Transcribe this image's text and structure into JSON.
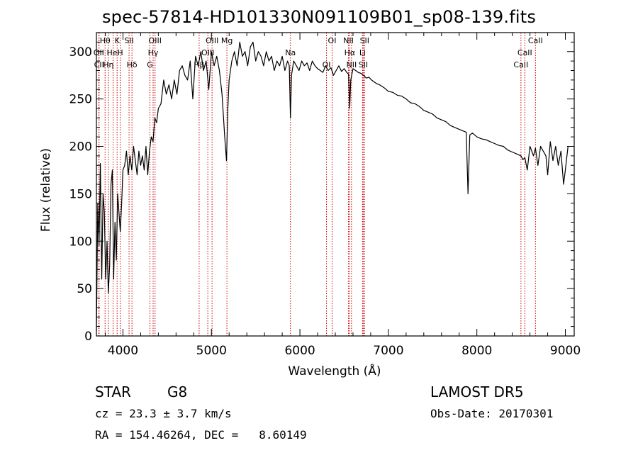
{
  "header": {
    "title": "spec-57814-HD101330N091109B01_sp08-139.fits"
  },
  "footer": {
    "class": "STAR",
    "subclass": "G8",
    "survey": "LAMOST DR5",
    "cz": "cz = 23.3 ± 3.7 km/s",
    "obs_date": "Obs-Date: 20170301",
    "coords": "RA = 154.46264, DEC =   8.60149"
  },
  "colors": {
    "line": "#000000",
    "marker": "#cc0000",
    "background": "#ffffff"
  },
  "chart_data": {
    "type": "line",
    "title": "spec-57814-HD101330N091109B01_sp08-139.fits",
    "xlabel": "Wavelength (Å)",
    "ylabel": "Flux (relative)",
    "xlim": [
      3700,
      9100
    ],
    "ylim": [
      0,
      320
    ],
    "xticks": [
      4000,
      5000,
      6000,
      7000,
      8000,
      9000
    ],
    "yticks": [
      0,
      50,
      100,
      150,
      200,
      250,
      300
    ],
    "grid": false,
    "series": [
      {
        "x": [
          3700,
          3715,
          3730,
          3745,
          3760,
          3775,
          3790,
          3805,
          3820,
          3835,
          3850,
          3865,
          3880,
          3895,
          3910,
          3925,
          3940,
          3955,
          3970,
          3985,
          4000,
          4020,
          4040,
          4060,
          4080,
          4100,
          4120,
          4140,
          4160,
          4180,
          4200,
          4220,
          4240,
          4260,
          4280,
          4300,
          4320,
          4340,
          4360,
          4380,
          4400,
          4430,
          4460,
          4490,
          4520,
          4550,
          4580,
          4610,
          4640,
          4670,
          4700,
          4730,
          4760,
          4790,
          4820,
          4850,
          4880,
          4910,
          4940,
          4970,
          5000,
          5030,
          5060,
          5090,
          5120,
          5150,
          5170,
          5185,
          5200,
          5230,
          5260,
          5290,
          5320,
          5350,
          5380,
          5410,
          5440,
          5470,
          5500,
          5530,
          5560,
          5590,
          5620,
          5650,
          5680,
          5710,
          5740,
          5770,
          5800,
          5830,
          5860,
          5880,
          5893,
          5905,
          5930,
          5960,
          5990,
          6020,
          6050,
          6080,
          6110,
          6140,
          6170,
          6200,
          6230,
          6260,
          6290,
          6320,
          6350,
          6380,
          6410,
          6440,
          6470,
          6500,
          6530,
          6550,
          6563,
          6575,
          6600,
          6630,
          6660,
          6690,
          6720,
          6750,
          6780,
          6810,
          6840,
          6870,
          6900,
          6950,
          7000,
          7050,
          7100,
          7150,
          7200,
          7250,
          7300,
          7350,
          7400,
          7450,
          7500,
          7550,
          7600,
          7650,
          7700,
          7750,
          7800,
          7850,
          7880,
          7900,
          7920,
          7950,
          8000,
          8050,
          8100,
          8150,
          8200,
          8250,
          8300,
          8350,
          8400,
          8450,
          8498,
          8520,
          8542,
          8570,
          8600,
          8640,
          8662,
          8690,
          8720,
          8750,
          8780,
          8800,
          8830,
          8860,
          8890,
          8920,
          8950,
          8980,
          9000,
          9030
        ],
        "y": [
          5,
          140,
          95,
          182,
          60,
          150,
          130,
          60,
          100,
          45,
          75,
          160,
          175,
          60,
          120,
          80,
          150,
          130,
          110,
          140,
          175,
          180,
          195,
          170,
          190,
          175,
          200,
          185,
          170,
          195,
          180,
          190,
          175,
          200,
          170,
          195,
          210,
          205,
          230,
          225,
          240,
          245,
          270,
          255,
          265,
          250,
          270,
          255,
          280,
          285,
          275,
          270,
          290,
          250,
          295,
          285,
          300,
          280,
          290,
          260,
          300,
          285,
          295,
          280,
          255,
          210,
          185,
          240,
          270,
          290,
          300,
          285,
          310,
          295,
          300,
          285,
          305,
          310,
          290,
          300,
          295,
          285,
          300,
          290,
          295,
          280,
          290,
          285,
          295,
          280,
          290,
          285,
          230,
          275,
          290,
          285,
          280,
          290,
          285,
          288,
          280,
          290,
          285,
          282,
          280,
          278,
          285,
          280,
          283,
          275,
          280,
          285,
          279,
          282,
          278,
          276,
          240,
          270,
          282,
          280,
          278,
          277,
          275,
          272,
          273,
          270,
          268,
          266,
          265,
          262,
          258,
          257,
          254,
          253,
          250,
          246,
          245,
          242,
          238,
          236,
          234,
          230,
          228,
          226,
          222,
          220,
          218,
          216,
          215,
          150,
          212,
          214,
          210,
          208,
          207,
          205,
          203,
          201,
          200,
          196,
          194,
          192,
          190,
          186,
          188,
          175,
          200,
          190,
          198,
          180,
          200,
          195,
          190,
          170,
          205,
          185,
          200,
          180,
          195,
          160,
          175,
          200
        ]
      }
    ],
    "line_markers": [
      {
        "label": "Hθ",
        "x": 3798
      },
      {
        "label": "OII",
        "x": 3727
      },
      {
        "label": "CII",
        "x": 3730
      },
      {
        "label": "K",
        "x": 3934
      },
      {
        "label": "HeI",
        "x": 3889
      },
      {
        "label": "Hη",
        "x": 3835
      },
      {
        "label": "SII",
        "x": 4069
      },
      {
        "label": "H",
        "x": 3969
      },
      {
        "label": "Hδ",
        "x": 4102
      },
      {
        "label": "OIII",
        "x": 4363
      },
      {
        "label": "Hγ",
        "x": 4341
      },
      {
        "label": "G",
        "x": 4305
      },
      {
        "label": "OIII",
        "x": 5007
      },
      {
        "label": "OIII",
        "x": 4959
      },
      {
        "label": "Hβ",
        "x": 4861
      },
      {
        "label": "Mg",
        "x": 5175
      },
      {
        "label": "Na",
        "x": 5893
      },
      {
        "label": "OI",
        "x": 6300
      },
      {
        "label": "OI",
        "x": 6364
      },
      {
        "label": "Hα",
        "x": 6563
      },
      {
        "label": "SII",
        "x": 6716
      },
      {
        "label": "NII",
        "x": 6548
      },
      {
        "label": "Li",
        "x": 6708
      },
      {
        "label": "NII",
        "x": 6583
      },
      {
        "label": "SII",
        "x": 6731
      },
      {
        "label": "CaII",
        "x": 8542
      },
      {
        "label": "CaII",
        "x": 8498
      },
      {
        "label": "CaII",
        "x": 8662
      }
    ]
  }
}
